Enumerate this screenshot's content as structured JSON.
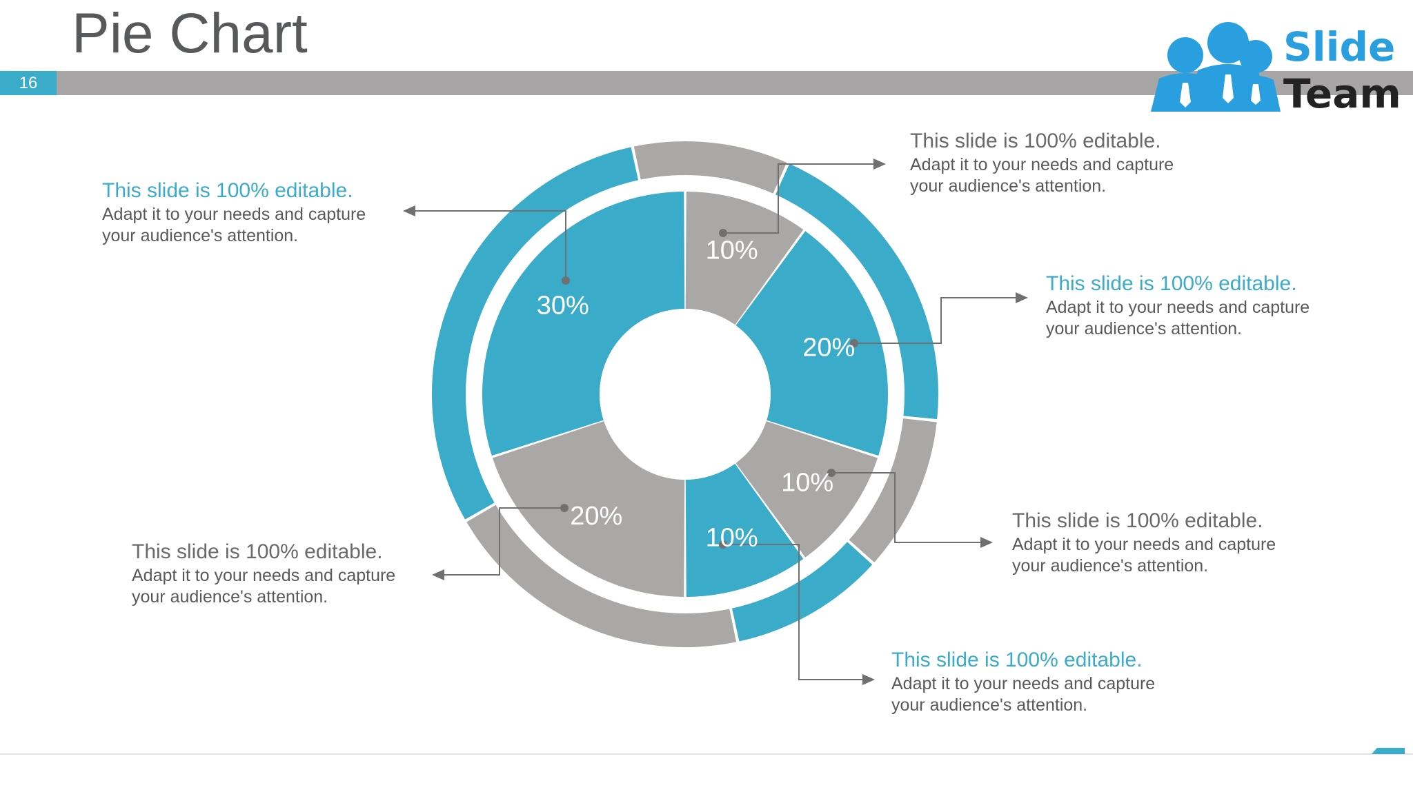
{
  "slide": {
    "title": "Pie Chart",
    "page_number": "16",
    "logo": {
      "line1": "Slide",
      "line2": "Team"
    }
  },
  "colors": {
    "teal": "#3aabc8",
    "gray": "#aaa7a7",
    "title_gray": "#58595b",
    "header_bar": "#a7a5a6",
    "connector": "#707070"
  },
  "chart_data": {
    "type": "pie",
    "variant": "donut-with-outer-ring",
    "slices": [
      {
        "label": "10%",
        "value": 10,
        "color": "#aaa7a7"
      },
      {
        "label": "20%",
        "value": 20,
        "color": "#3aabc8"
      },
      {
        "label": "10%",
        "value": 10,
        "color": "#aaa7a7"
      },
      {
        "label": "10%",
        "value": 10,
        "color": "#3aabc8"
      },
      {
        "label": "20%",
        "value": 20,
        "color": "#aaa7a7"
      },
      {
        "label": "30%",
        "value": 30,
        "color": "#3aabc8"
      }
    ],
    "outer_ring": [
      {
        "value": 10,
        "color": "#aaa7a7"
      },
      {
        "value": 20,
        "color": "#3aabc8"
      },
      {
        "value": 10,
        "color": "#aaa7a7"
      },
      {
        "value": 10,
        "color": "#3aabc8"
      },
      {
        "value": 20,
        "color": "#aaa7a7"
      },
      {
        "value": 30,
        "color": "#3aabc8"
      }
    ]
  },
  "callouts": [
    {
      "heading": "This slide is 100% editable",
      "heading_suffix": ".",
      "line1": "Adapt it to your needs and capture",
      "line2": "your audience's attention.",
      "accent": false
    },
    {
      "heading": "This slide is 100% editable",
      "heading_suffix": ".",
      "line1": "Adapt it to your needs and capture",
      "line2": "your audience's attention.",
      "accent": true
    },
    {
      "heading": "This slide is 100% editable.",
      "heading_suffix": "",
      "line1": "Adapt it to your needs and capture",
      "line2": "your audience's attention.",
      "accent": false
    },
    {
      "heading": "This slide is 100% editable.",
      "heading_suffix": "",
      "line1": "Adapt it to your needs and capture",
      "line2": "your audience's attention.",
      "accent": true
    },
    {
      "heading": "This slide is 100% editable",
      "heading_suffix": ".",
      "line1": "Adapt it to your needs and capture",
      "line2": "your audience's attention.",
      "accent": false
    },
    {
      "heading": "This slide is 100% editable.",
      "heading_suffix": "",
      "line1": "Adapt it to your needs and capture",
      "line2": "your audience's attention.",
      "accent": true
    }
  ]
}
